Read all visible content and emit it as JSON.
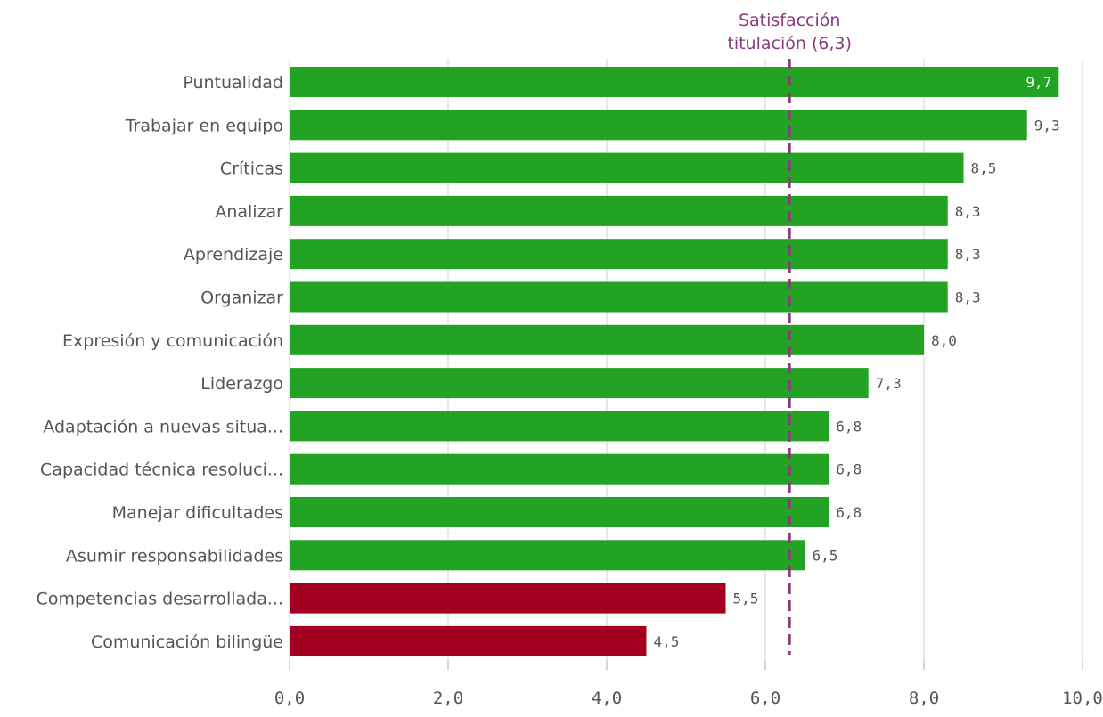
{
  "chart_data": {
    "type": "bar",
    "orientation": "horizontal",
    "categories": [
      "Puntualidad",
      "Trabajar en equipo",
      "Críticas",
      "Analizar",
      "Aprendizaje",
      "Organizar",
      "Expresión y comunicación",
      "Liderazgo",
      "Adaptación a nuevas situa...",
      "Capacidad técnica resoluci...",
      "Manejar dificultades",
      "Asumir responsabilidades",
      "Competencias desarrollada...",
      "Comunicación bilingüe"
    ],
    "values": [
      9.7,
      9.3,
      8.5,
      8.3,
      8.3,
      8.3,
      8.0,
      7.3,
      6.8,
      6.8,
      6.8,
      6.5,
      5.5,
      4.5
    ],
    "value_labels": [
      "9,7",
      "9,3",
      "8,5",
      "8,3",
      "8,3",
      "8,3",
      "8,0",
      "7,3",
      "6,8",
      "6,8",
      "6,8",
      "6,5",
      "5,5",
      "4,5"
    ],
    "xlim": [
      0,
      10
    ],
    "x_ticks": [
      0,
      2,
      4,
      6,
      8,
      10
    ],
    "x_tick_labels": [
      "0,0",
      "2,0",
      "4,0",
      "6,0",
      "8,0",
      "10,0"
    ],
    "grid": true,
    "reference_line": {
      "value": 6.3,
      "label_lines": [
        "Satisfacción",
        "titulación (6,3)"
      ],
      "color": "#8b3a7e",
      "style": "dashed"
    },
    "colors": {
      "above": "#22a323",
      "below": "#a30021",
      "grid": "#d9d9d9",
      "text": "#555555"
    }
  }
}
